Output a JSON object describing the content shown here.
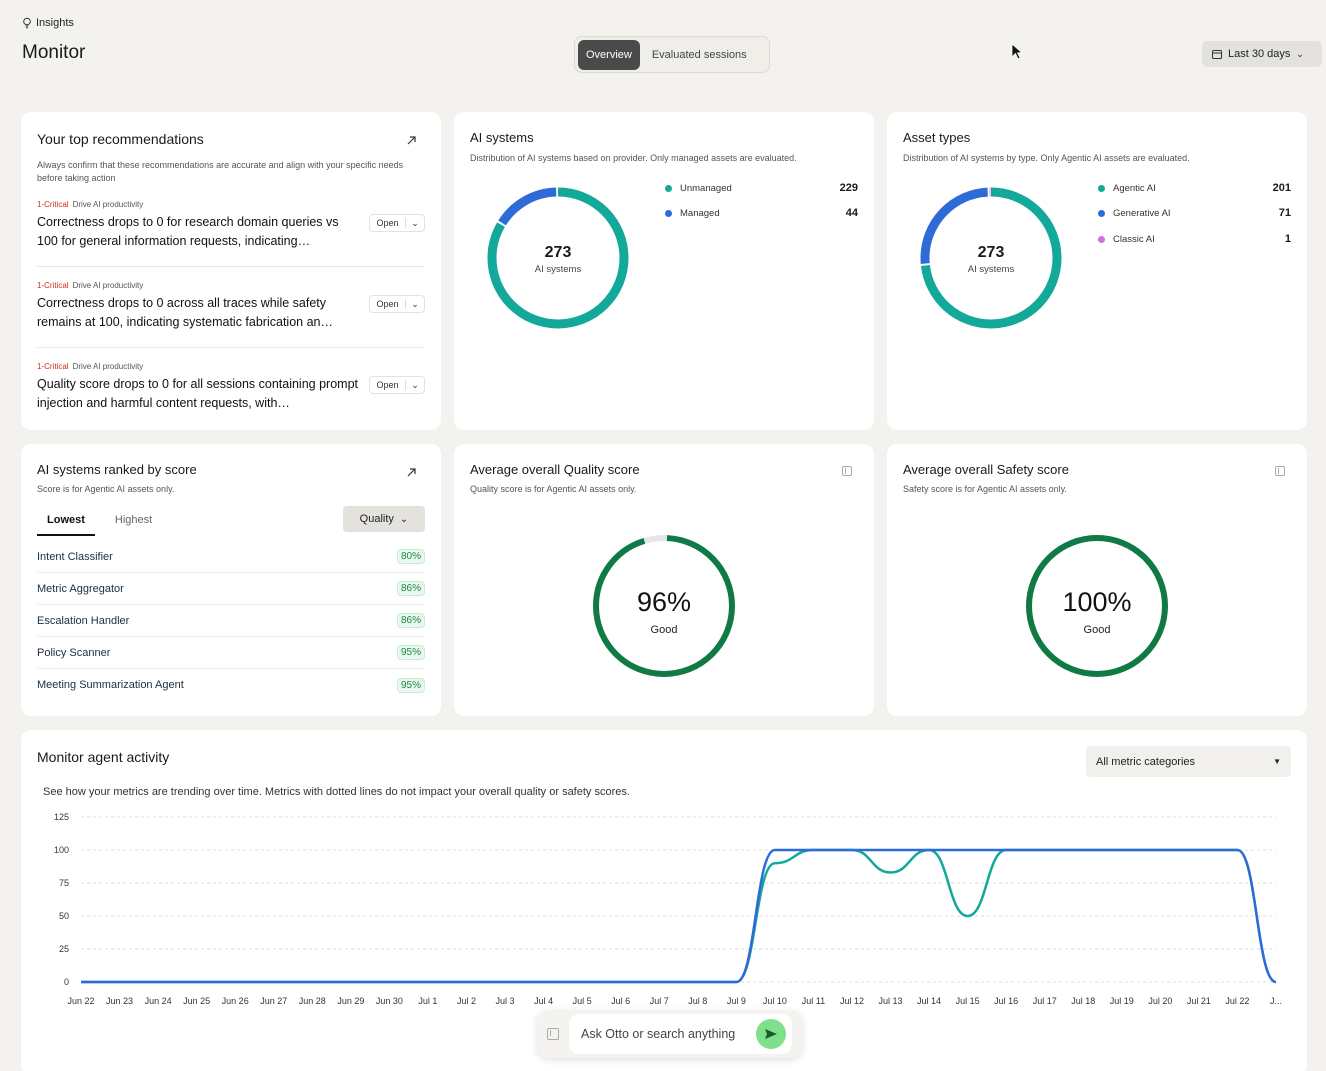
{
  "header": {
    "breadcrumb": "Insights",
    "title": "Monitor",
    "tabs": [
      {
        "label": "Overview",
        "active": true
      },
      {
        "label": "Evaluated sessions",
        "active": false
      }
    ],
    "date_range": "Last 30 days"
  },
  "recommendations": {
    "title": "Your top recommendations",
    "subtitle": "Always confirm that these recommendations are accurate and align with your specific needs before taking action",
    "items": [
      {
        "severity": "1-Critical",
        "category": "Drive AI productivity",
        "text": "Correctness drops to 0 for research domain queries vs 100 for general information requests, indicating…",
        "action": "Open"
      },
      {
        "severity": "1-Critical",
        "category": "Drive AI productivity",
        "text": "Correctness drops to 0 across all traces while safety remains at 100, indicating systematic fabrication an…",
        "action": "Open"
      },
      {
        "severity": "1-Critical",
        "category": "Drive AI productivity",
        "text": "Quality score drops to 0 for all sessions containing prompt injection and harmful content requests, with…",
        "action": "Open"
      }
    ]
  },
  "ai_systems": {
    "title": "AI systems",
    "subtitle": "Distribution of AI systems based on provider. Only managed assets are evaluated.",
    "total": "273",
    "total_label": "AI systems",
    "legend": [
      {
        "label": "Unmanaged",
        "value": "229",
        "color": "#12a89a"
      },
      {
        "label": "Managed",
        "value": "44",
        "color": "#2e6bd9"
      }
    ]
  },
  "asset_types": {
    "title": "Asset types",
    "subtitle": "Distribution of AI systems by type. Only Agentic AI assets are evaluated.",
    "total": "273",
    "total_label": "AI systems",
    "legend": [
      {
        "label": "Agentic AI",
        "value": "201",
        "color": "#12a89a"
      },
      {
        "label": "Generative AI",
        "value": "71",
        "color": "#2e6bd9"
      },
      {
        "label": "Classic AI",
        "value": "1",
        "color": "#cf6fe0"
      }
    ]
  },
  "ranked": {
    "title": "AI systems ranked by score",
    "subtitle": "Score is for Agentic AI assets only.",
    "tabs": [
      "Lowest",
      "Highest"
    ],
    "metric": "Quality",
    "rows": [
      {
        "name": "Intent Classifier",
        "score": "80%"
      },
      {
        "name": "Metric Aggregator",
        "score": "86%"
      },
      {
        "name": "Escalation Handler",
        "score": "86%"
      },
      {
        "name": "Policy Scanner",
        "score": "95%"
      },
      {
        "name": "Meeting Summarization Agent",
        "score": "95%"
      }
    ]
  },
  "quality": {
    "title": "Average overall Quality score",
    "subtitle": "Quality score is for Agentic AI assets only.",
    "value": "96%",
    "fraction": 0.96,
    "rating": "Good"
  },
  "safety": {
    "title": "Average overall Safety score",
    "subtitle": "Safety score is for Agentic AI assets only.",
    "value": "100%",
    "fraction": 1.0,
    "rating": "Good"
  },
  "activity": {
    "title": "Monitor agent activity",
    "subtitle": "See how your metrics are trending over time. Metrics with dotted lines do not impact your overall quality or safety scores.",
    "filter": "All metric categories"
  },
  "ask": {
    "placeholder": "Ask Otto or search anything"
  },
  "colors": {
    "teal": "#12a89a",
    "blue": "#2e6bd9",
    "good_green": "#0f7a45",
    "critical_red": "#d0301e"
  },
  "chart_data": {
    "type": "line",
    "yticks": [
      "0",
      "25",
      "50",
      "75",
      "100",
      "125"
    ],
    "ylim": [
      0,
      125
    ],
    "categories": [
      "Jun 22",
      "Jun 23",
      "Jun 24",
      "Jun 25",
      "Jun 26",
      "Jun 27",
      "Jun 28",
      "Jun 29",
      "Jun 30",
      "Jul 1",
      "Jul 2",
      "Jul 3",
      "Jul 4",
      "Jul 5",
      "Jul 6",
      "Jul 7",
      "Jul 8",
      "Jul 9",
      "Jul 10",
      "Jul 11",
      "Jul 12",
      "Jul 13",
      "Jul 14",
      "Jul 15",
      "Jul 16",
      "Jul 17",
      "Jul 18",
      "Jul 19",
      "Jul 20",
      "Jul 21",
      "Jul 22",
      "J..."
    ],
    "series": [
      {
        "color": "#12a89a",
        "values": [
          0,
          0,
          0,
          0,
          0,
          0,
          0,
          0,
          0,
          0,
          0,
          0,
          0,
          0,
          0,
          0,
          0,
          0,
          90,
          100,
          100,
          83,
          100,
          50,
          100,
          100,
          100,
          100,
          100,
          100,
          100,
          0
        ]
      },
      {
        "color": "#2e6bd9",
        "values": [
          0,
          0,
          0,
          0,
          0,
          0,
          0,
          0,
          0,
          0,
          0,
          0,
          0,
          0,
          0,
          0,
          0,
          0,
          100,
          100,
          100,
          100,
          100,
          100,
          100,
          100,
          100,
          100,
          100,
          100,
          100,
          0
        ]
      }
    ],
    "grid": true
  }
}
